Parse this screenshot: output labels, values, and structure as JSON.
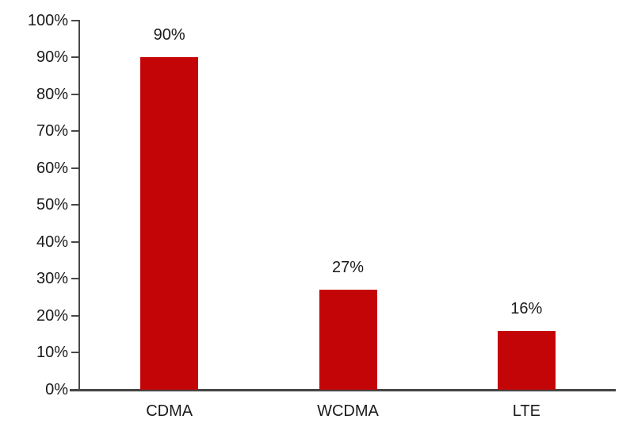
{
  "chart_data": {
    "type": "bar",
    "title": "",
    "categories": [
      "CDMA",
      "WCDMA",
      "LTE"
    ],
    "values": [
      90,
      27,
      16
    ],
    "value_labels": [
      "90%",
      "27%",
      "16%"
    ],
    "ytick_values": [
      0,
      10,
      20,
      30,
      40,
      50,
      60,
      70,
      80,
      90,
      100
    ],
    "ytick_labels": [
      "0%",
      "10%",
      "20%",
      "30%",
      "40%",
      "50%",
      "60%",
      "70%",
      "80%",
      "90%",
      "100%"
    ],
    "ylim": [
      0,
      100
    ],
    "grid": false,
    "legend": false,
    "bar_color": "#c40508",
    "axis_color": "#484848",
    "text_color": "#1a1a1a"
  }
}
